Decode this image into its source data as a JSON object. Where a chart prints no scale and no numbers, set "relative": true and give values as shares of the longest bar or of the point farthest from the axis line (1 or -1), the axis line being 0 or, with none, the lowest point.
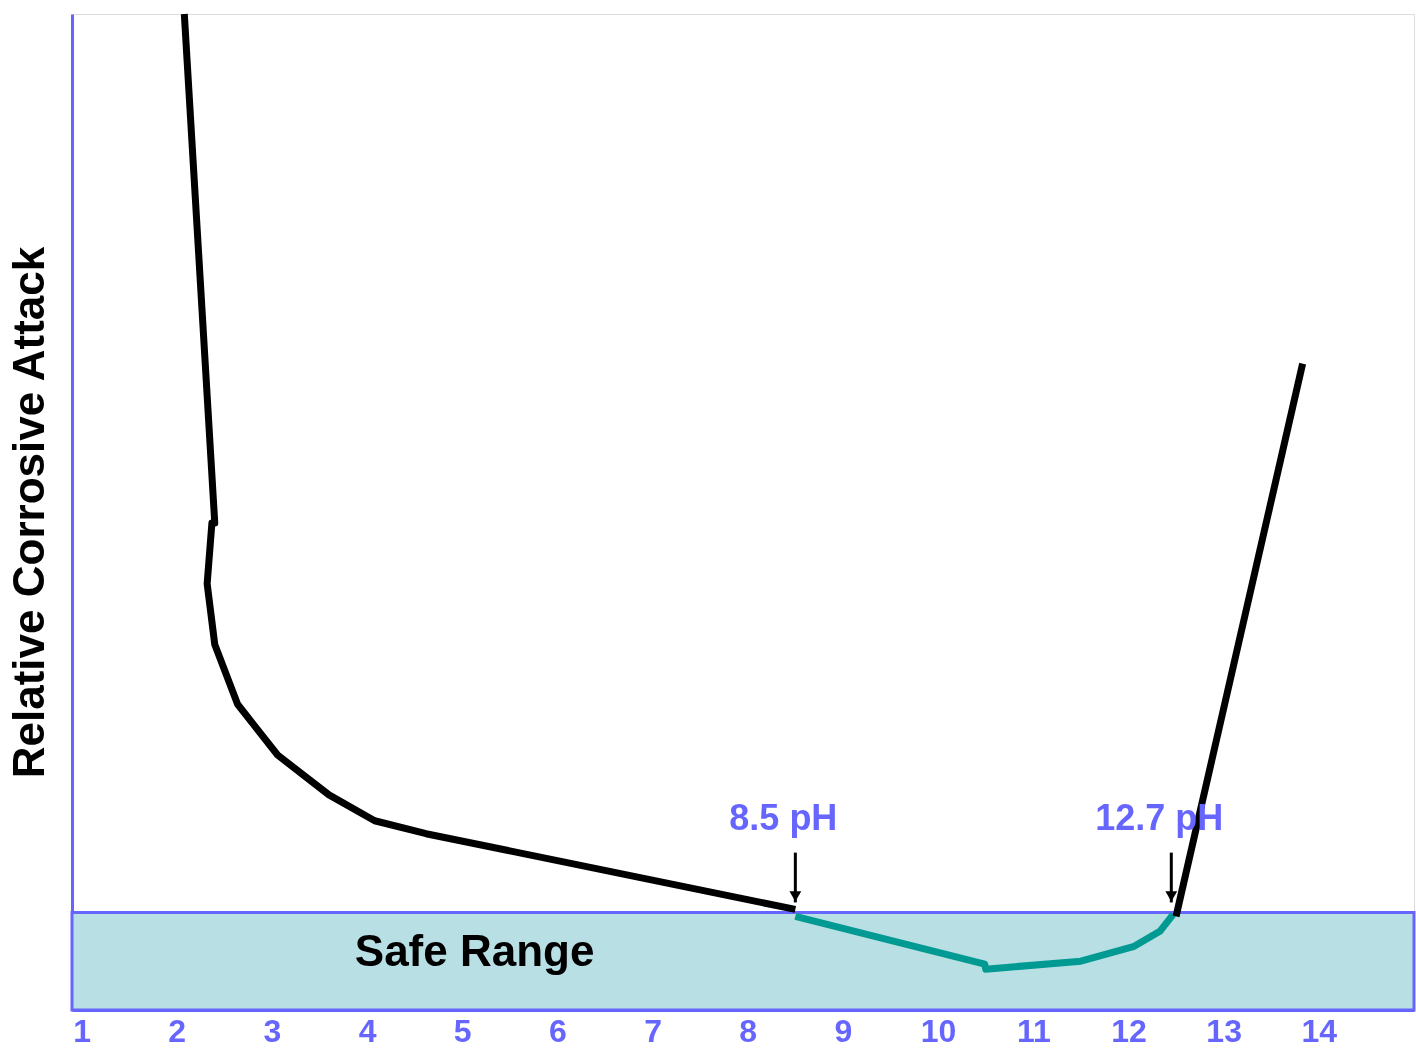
{
  "chart_data": {
    "type": "line",
    "relative": true,
    "ylabel": "Relative Corrosive Attack",
    "xlim": [
      0.9,
      15
    ],
    "xticks": [
      1,
      2,
      3,
      4,
      5,
      6,
      7,
      8,
      9,
      10,
      11,
      12,
      13,
      14
    ],
    "series": [
      {
        "color": "#000000",
        "x": [
          2.08,
          2.4,
          2.37,
          2.32,
          2.4,
          2.64,
          3.06,
          3.6,
          4.08,
          4.62,
          8.5
        ],
        "values": [
          1.0,
          0.489,
          0.489,
          0.428,
          0.367,
          0.307,
          0.256,
          0.216,
          0.19,
          0.177,
          0.101
        ]
      },
      {
        "color": "#009a93",
        "x": [
          8.5,
          10.49,
          10.5,
          11.5,
          12.06,
          12.33,
          12.47
        ],
        "values": [
          0.094,
          0.046,
          0.041,
          0.049,
          0.064,
          0.079,
          0.096
        ]
      },
      {
        "color": "#000000",
        "x": [
          12.5,
          13.83
        ],
        "values": [
          0.094,
          0.649
        ]
      }
    ],
    "bands": [
      {
        "axis": "y",
        "from": 0,
        "to": 0.098,
        "label": "Safe Range",
        "color": "#b8dfe3"
      }
    ],
    "annotations": [
      {
        "text": "8.5 pH",
        "x": 8.5,
        "y": 0.098
      },
      {
        "text": "12.7 pH",
        "x": 12.45,
        "y": 0.098
      }
    ],
    "grid": false,
    "legend": false,
    "marker": "none",
    "line_style": "solid"
  }
}
